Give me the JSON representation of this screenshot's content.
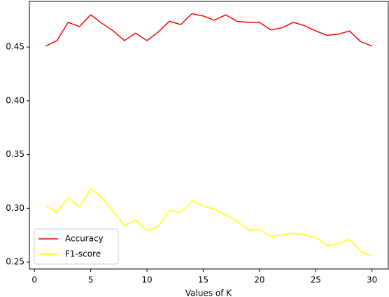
{
  "chart_data": {
    "type": "line",
    "x_label": "Values of K",
    "x": [
      1,
      2,
      3,
      4,
      5,
      6,
      7,
      8,
      9,
      10,
      11,
      12,
      13,
      14,
      15,
      16,
      17,
      18,
      19,
      20,
      21,
      22,
      23,
      24,
      25,
      26,
      27,
      28,
      29,
      30
    ],
    "series": [
      {
        "name": "Accuracy",
        "color": "#ff0000",
        "values": [
          0.451,
          0.456,
          0.473,
          0.469,
          0.48,
          0.472,
          0.465,
          0.456,
          0.463,
          0.456,
          0.464,
          0.474,
          0.471,
          0.481,
          0.479,
          0.475,
          0.48,
          0.474,
          0.473,
          0.473,
          0.466,
          0.468,
          0.473,
          0.47,
          0.465,
          0.461,
          0.462,
          0.465,
          0.455,
          0.451
        ]
      },
      {
        "name": "F1-score",
        "color": "#ffff00",
        "values": [
          0.302,
          0.296,
          0.31,
          0.301,
          0.318,
          0.31,
          0.297,
          0.284,
          0.289,
          0.279,
          0.283,
          0.298,
          0.296,
          0.307,
          0.302,
          0.299,
          0.294,
          0.288,
          0.28,
          0.28,
          0.274,
          0.275,
          0.277,
          0.275,
          0.273,
          0.265,
          0.267,
          0.271,
          0.26,
          0.255
        ]
      }
    ],
    "xlim": [
      -0.45,
      31.45
    ],
    "xticks": [
      0,
      5,
      10,
      15,
      20,
      25,
      30
    ],
    "ylim": [
      0.2435,
      0.4925
    ],
    "yticks": [
      0.25,
      {
        "value": 0.3,
        "label": "0.30"
      },
      0.35,
      {
        "value": 0.4,
        "label": "0.40"
      },
      0.45
    ],
    "legend": "lower left"
  }
}
